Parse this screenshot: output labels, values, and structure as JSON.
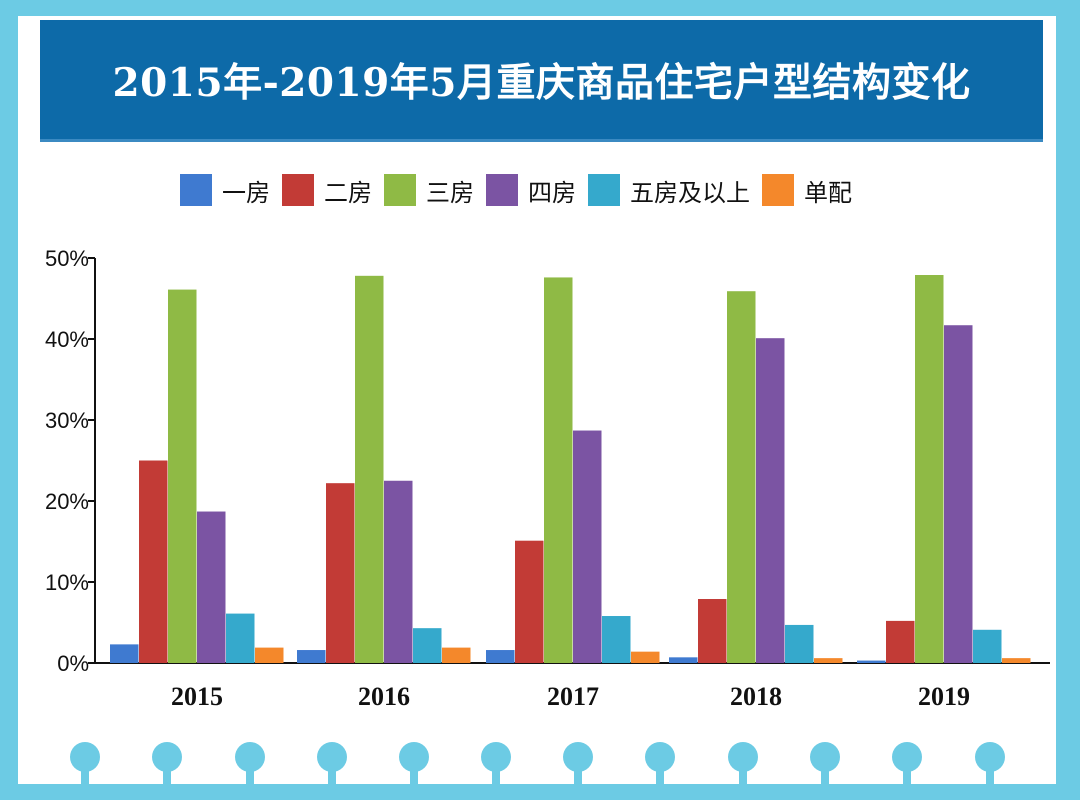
{
  "title": "2015年-2019年5月重庆商品住宅户型结构变化",
  "colors": {
    "background": "#6ccbe4",
    "title_bar": "#0d6aa8",
    "series": [
      "#3f7ad0",
      "#c23b36",
      "#8fba45",
      "#7b54a3",
      "#35a9cc",
      "#f4882b"
    ]
  },
  "chart_data": {
    "type": "bar",
    "title": "2015年-2019年5月重庆商品住宅户型结构变化",
    "categories": [
      "2015",
      "2016",
      "2017",
      "2018",
      "2019"
    ],
    "series": [
      {
        "name": "一房",
        "values": [
          2.3,
          1.6,
          1.6,
          0.7,
          0.3
        ]
      },
      {
        "name": "二房",
        "values": [
          25.0,
          22.2,
          15.1,
          7.9,
          5.2
        ]
      },
      {
        "name": "三房",
        "values": [
          46.1,
          47.8,
          47.6,
          45.9,
          47.9
        ]
      },
      {
        "name": "四房",
        "values": [
          18.7,
          22.5,
          28.7,
          40.1,
          41.7
        ]
      },
      {
        "name": "五房及以上",
        "values": [
          6.1,
          4.3,
          5.8,
          4.7,
          4.1
        ]
      },
      {
        "name": "单配",
        "values": [
          1.9,
          1.9,
          1.4,
          0.6,
          0.6
        ]
      }
    ],
    "y_ticks": [
      "0%",
      "10%",
      "20%",
      "30%",
      "40%",
      "50%"
    ],
    "ylim": [
      0,
      50
    ],
    "xlabel": "",
    "ylabel": "",
    "legend_position": "top",
    "grid": false
  }
}
